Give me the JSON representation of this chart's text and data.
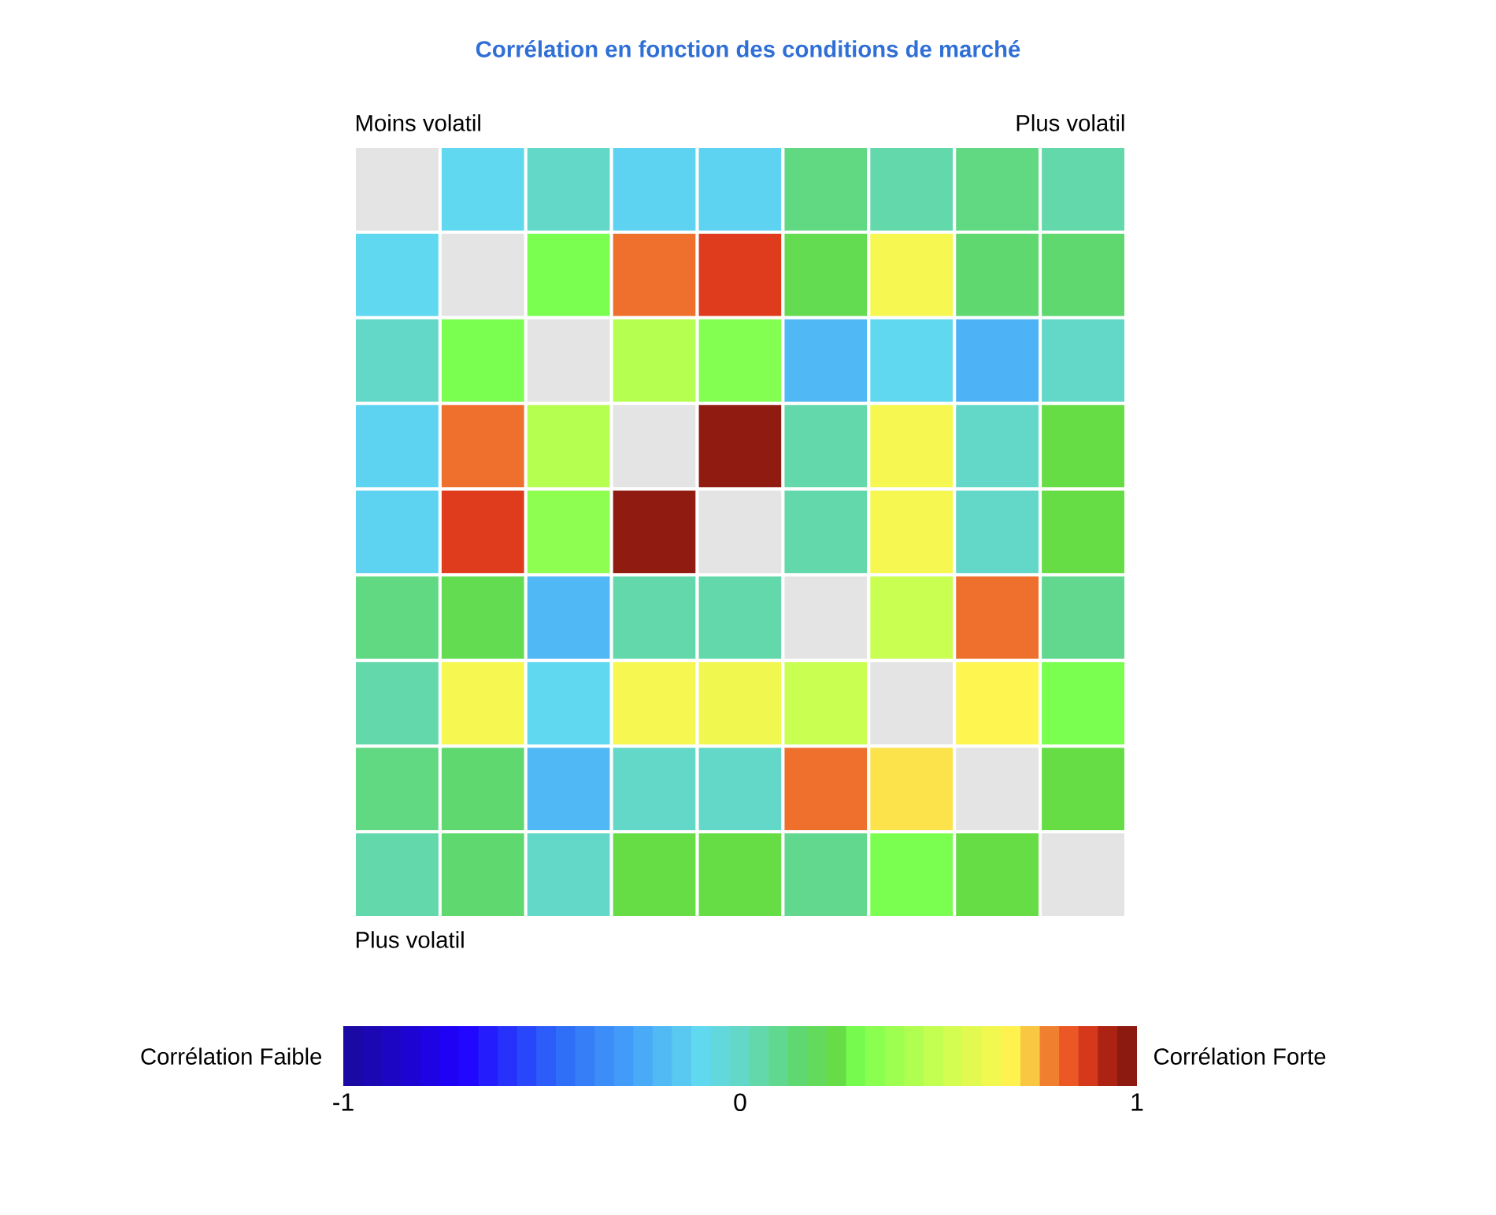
{
  "chart_data": {
    "type": "heatmap",
    "title": "Corrélation en fonction des conditions de marché",
    "categories": [
      null,
      null,
      null,
      null,
      null,
      null,
      null,
      null,
      null
    ],
    "y_categories": [
      null,
      null,
      null,
      null,
      null,
      null,
      null,
      null,
      null
    ],
    "cells": [
      [
        null,
        -0.1,
        0,
        -0.12,
        -0.12,
        0.12,
        0.05,
        0.12,
        0.05
      ],
      [
        -0.1,
        null,
        0.3,
        0.8,
        0.87,
        0.22,
        0.65,
        0.15,
        0.15
      ],
      [
        0,
        0.3,
        null,
        0.45,
        0.32,
        -0.2,
        -0.1,
        -0.22,
        0
      ],
      [
        -0.12,
        0.8,
        0.45,
        null,
        0.97,
        0.05,
        0.65,
        0,
        0.25
      ],
      [
        -0.12,
        0.87,
        0.35,
        0.97,
        null,
        0.05,
        0.65,
        0,
        0.25
      ],
      [
        0.12,
        0.22,
        -0.2,
        0.05,
        0.05,
        null,
        0.5,
        0.8,
        0.1
      ],
      [
        0.05,
        0.65,
        -0.1,
        0.65,
        0.63,
        0.5,
        null,
        0.68,
        0.3
      ],
      [
        0.12,
        0.15,
        -0.2,
        0,
        0,
        0.8,
        0.7,
        null,
        0.25
      ],
      [
        0.05,
        0.15,
        0,
        0.25,
        0.25,
        0.1,
        0.3,
        0.25,
        null
      ]
    ],
    "clim": [
      -1,
      1
    ],
    "cticks": [
      -1,
      0,
      1
    ],
    "annotations": [
      "Moins volatil",
      "Plus volatil",
      "Plus volatil",
      "Corrélation Faible",
      "Corrélation Forte"
    ]
  }
}
